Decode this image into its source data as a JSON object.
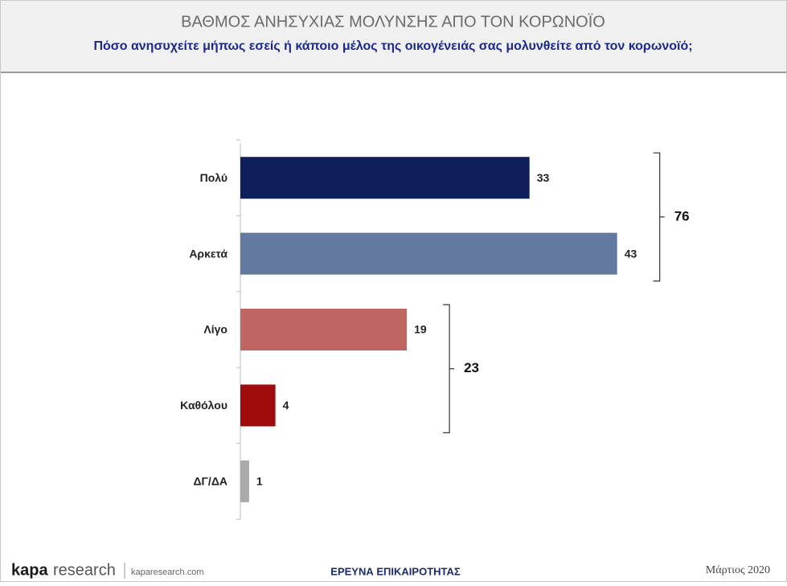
{
  "chart_data": {
    "type": "hbar",
    "title": "ΒΑΘΜΟΣ ΑΝΗΣΥΧΙΑΣ ΜΟΛΥΝΣΗΣ ΑΠΟ ΤΟΝ ΚΟΡΩΝΟΪΟ",
    "subtitle": "Πόσο ανησυχείτε μήπως εσείς ή κάποιο μέλος της οικογένειάς σας μολυνθείτε από τον κορωνοϊό;",
    "categories": [
      "Πολύ",
      "Αρκετά",
      "Λίγο",
      "Καθόλου",
      "ΔΓ/ΔΑ"
    ],
    "values": [
      33,
      43,
      19,
      4,
      1
    ],
    "colors": [
      "#0f1f5c",
      "#6479a0",
      "#c06562",
      "#a00c0c",
      "#a9a9a9"
    ],
    "xlim": [
      0,
      60
    ],
    "brackets": [
      {
        "value": 76,
        "categories": [
          "Πολύ",
          "Αρκετά"
        ]
      },
      {
        "value": 23,
        "categories": [
          "Λίγο",
          "Καθόλου"
        ]
      }
    ]
  },
  "footer": {
    "brand": "kapa",
    "brand_suffix": "research",
    "website": "kaparesearch.com",
    "center": "ΕΡΕΥΝΑ ΕΠΙΚΑΙΡΟΤΗΤΑΣ",
    "date": "Μάρτιος 2020"
  }
}
